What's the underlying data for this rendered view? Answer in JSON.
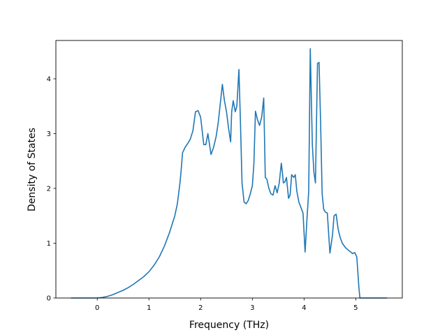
{
  "chart_data": {
    "type": "line",
    "title": "",
    "xlabel": "Frequency (THz)",
    "ylabel": "Density of States",
    "xlim": [
      -0.8,
      5.9
    ],
    "ylim": [
      0,
      4.7
    ],
    "xticks": [
      0,
      1,
      2,
      3,
      4,
      5
    ],
    "yticks": [
      0,
      1,
      2,
      3,
      4
    ],
    "xtick_labels": [
      "0",
      "1",
      "2",
      "3",
      "4",
      "5"
    ],
    "ytick_labels": [
      "0",
      "1",
      "2",
      "3",
      "4"
    ],
    "grid": false,
    "series_color": "#1f77b4",
    "series": [
      {
        "x": [
          -0.5,
          0.0,
          0.1,
          0.2,
          0.3,
          0.4,
          0.5,
          0.6,
          0.7,
          0.8,
          0.9,
          1.0,
          1.1,
          1.2,
          1.3,
          1.4,
          1.5,
          1.55,
          1.6,
          1.62,
          1.65,
          1.7,
          1.75,
          1.8,
          1.85,
          1.9,
          1.95,
          2.0,
          2.03,
          2.06,
          2.1,
          2.14,
          2.2,
          2.25,
          2.3,
          2.34,
          2.38,
          2.42,
          2.46,
          2.5,
          2.54,
          2.58,
          2.6,
          2.63,
          2.67,
          2.7,
          2.74,
          2.77,
          2.8,
          2.84,
          2.88,
          2.92,
          2.96,
          3.0,
          3.03,
          3.06,
          3.1,
          3.14,
          3.18,
          3.22,
          3.25,
          3.28,
          3.32,
          3.36,
          3.4,
          3.44,
          3.48,
          3.52,
          3.56,
          3.58,
          3.6,
          3.63,
          3.66,
          3.7,
          3.73,
          3.76,
          3.8,
          3.83,
          3.86,
          3.9,
          3.94,
          3.98,
          4.02,
          4.06,
          4.09,
          4.12,
          4.16,
          4.19,
          4.22,
          4.26,
          4.29,
          4.32,
          4.35,
          4.38,
          4.41,
          4.45,
          4.5,
          4.55,
          4.58,
          4.62,
          4.66,
          4.7,
          4.74,
          4.8,
          4.86,
          4.9,
          4.94,
          4.98,
          5.02,
          5.06,
          5.08,
          5.1,
          5.6
        ],
        "values": [
          0,
          0,
          0.01,
          0.03,
          0.06,
          0.1,
          0.14,
          0.19,
          0.25,
          0.32,
          0.39,
          0.48,
          0.6,
          0.75,
          0.95,
          1.2,
          1.5,
          1.72,
          2.1,
          2.3,
          2.65,
          2.75,
          2.82,
          2.9,
          3.05,
          3.4,
          3.42,
          3.3,
          3.05,
          2.8,
          2.8,
          3.0,
          2.62,
          2.75,
          2.95,
          3.2,
          3.55,
          3.9,
          3.6,
          3.4,
          3.1,
          2.85,
          3.4,
          3.6,
          3.4,
          3.5,
          4.17,
          3.2,
          2.1,
          1.75,
          1.72,
          1.78,
          1.9,
          2.05,
          2.45,
          3.41,
          3.25,
          3.15,
          3.3,
          3.65,
          2.2,
          2.17,
          2.0,
          1.9,
          1.88,
          2.05,
          1.92,
          2.1,
          2.46,
          2.3,
          2.1,
          2.12,
          2.2,
          1.82,
          1.88,
          2.25,
          2.2,
          2.25,
          1.95,
          1.75,
          1.65,
          1.55,
          0.84,
          1.5,
          1.95,
          4.55,
          2.8,
          2.3,
          2.1,
          4.28,
          4.3,
          3.2,
          1.9,
          1.62,
          1.57,
          1.55,
          0.82,
          1.15,
          1.5,
          1.53,
          1.25,
          1.1,
          1.0,
          0.92,
          0.87,
          0.84,
          0.81,
          0.83,
          0.75,
          0.2,
          0,
          0,
          0
        ]
      }
    ]
  }
}
